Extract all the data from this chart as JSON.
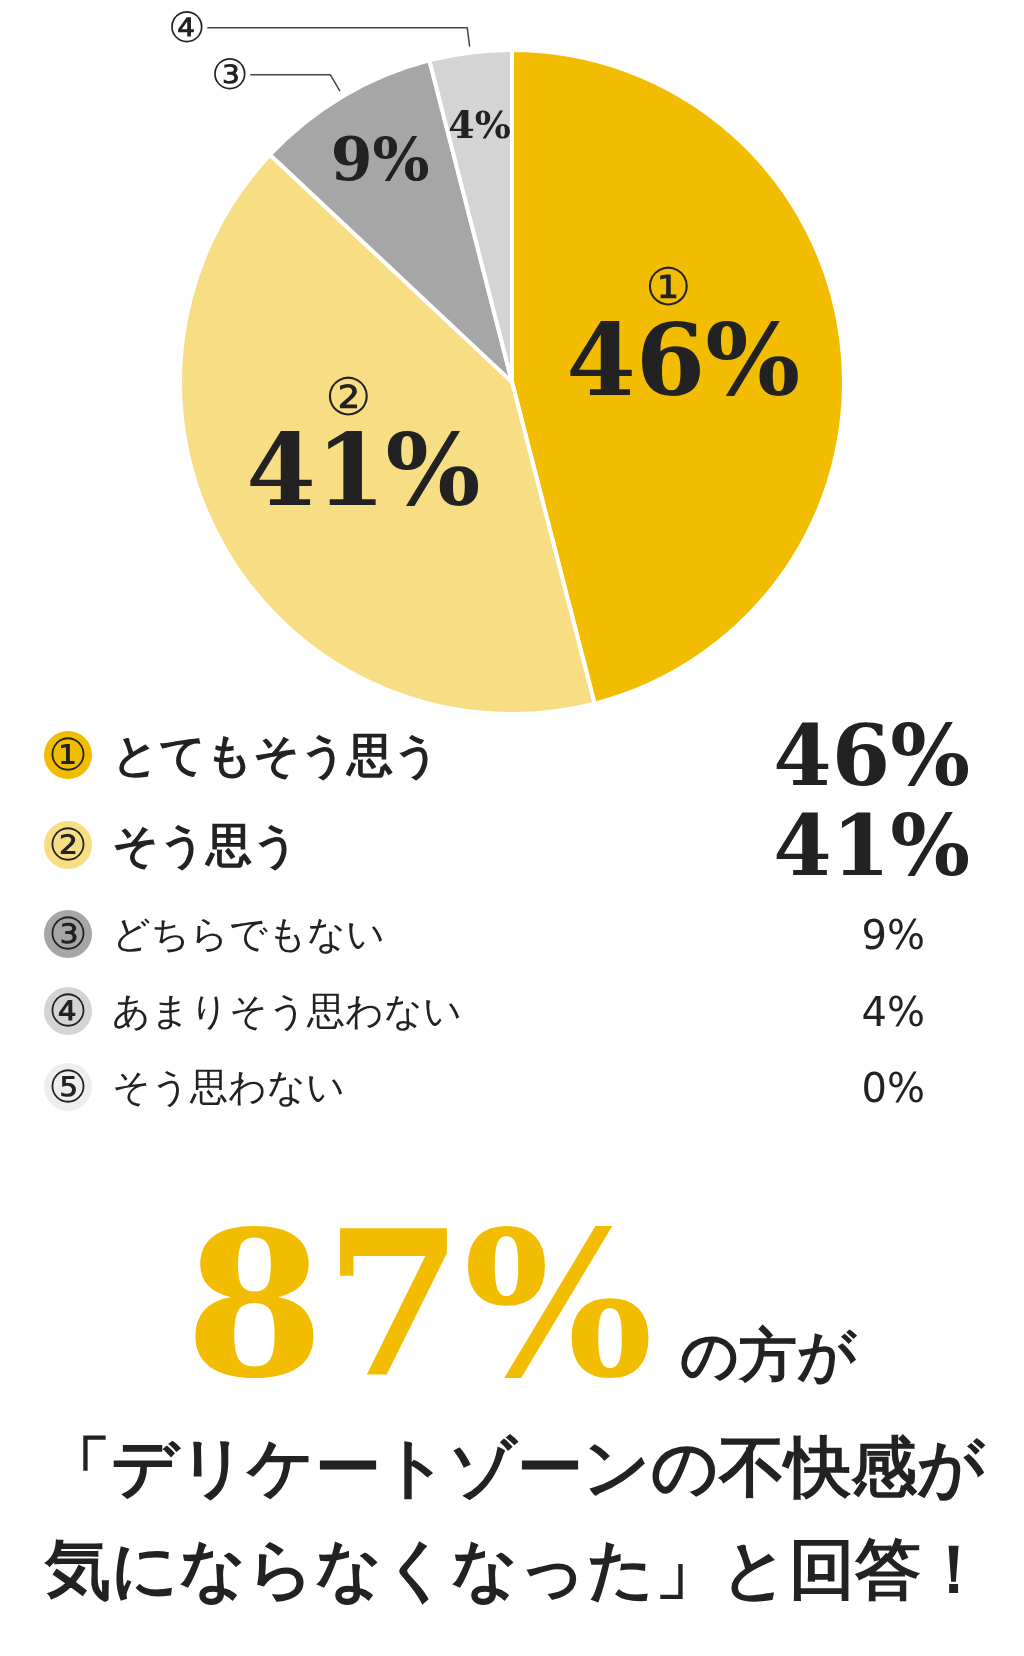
{
  "chart_data": {
    "type": "pie",
    "categories": [
      "とてもそう思う",
      "そう思う",
      "どちらでもない",
      "あまりそう思わない",
      "そう思わない"
    ],
    "values": [
      46,
      41,
      9,
      4,
      0
    ],
    "colors": [
      "#f2bd00",
      "#f7de85",
      "#a6a6a6",
      "#d4d4d4",
      "#eeeeee"
    ],
    "value_labels": [
      "46%",
      "41%",
      "9%",
      "4%",
      "0%"
    ],
    "legend": "bottom",
    "annotations": [
      "①",
      "②",
      "③",
      "④",
      "⑤",
      "87%",
      "の方が",
      "「デリケートゾーンの不快感が",
      "気にならなくなった」と回答！"
    ]
  }
}
